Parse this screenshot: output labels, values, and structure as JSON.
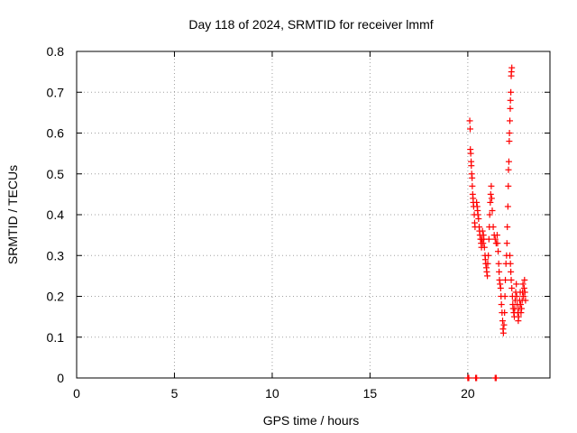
{
  "chart_data": {
    "type": "scatter",
    "title": "Day 118 of 2024, SRMTID for receiver lmmf",
    "xlabel": "GPS time / hours",
    "ylabel": "SRMTID / TECUs",
    "xlim": [
      0,
      24.2
    ],
    "ylim": [
      0,
      0.8
    ],
    "xticks": [
      0,
      5,
      10,
      15,
      20
    ],
    "yticks": [
      0,
      0.1,
      0.2,
      0.3,
      0.4,
      0.5,
      0.6,
      0.7,
      0.8
    ],
    "ytick_labels": [
      "0",
      "0.1",
      "0.2",
      "0.3",
      "0.4",
      "0.5",
      "0.6",
      "0.7",
      "0.8"
    ],
    "grid": true,
    "marker": "+",
    "marker_color": "#ff0000",
    "series": [
      {
        "name": "SRMTID",
        "points": [
          [
            20.0,
            0.0
          ],
          [
            20.05,
            0.0
          ],
          [
            20.4,
            0.0
          ],
          [
            20.45,
            0.0
          ],
          [
            21.4,
            0.0
          ],
          [
            21.45,
            0.0
          ],
          [
            20.1,
            0.63
          ],
          [
            20.12,
            0.61
          ],
          [
            20.13,
            0.56
          ],
          [
            20.15,
            0.55
          ],
          [
            20.17,
            0.53
          ],
          [
            20.18,
            0.52
          ],
          [
            20.2,
            0.5
          ],
          [
            20.22,
            0.49
          ],
          [
            20.23,
            0.47
          ],
          [
            20.25,
            0.45
          ],
          [
            20.27,
            0.44
          ],
          [
            20.28,
            0.43
          ],
          [
            20.3,
            0.42
          ],
          [
            20.33,
            0.4
          ],
          [
            20.35,
            0.38
          ],
          [
            20.37,
            0.37
          ],
          [
            20.45,
            0.43
          ],
          [
            20.48,
            0.42
          ],
          [
            20.5,
            0.41
          ],
          [
            20.52,
            0.4
          ],
          [
            20.55,
            0.39
          ],
          [
            20.58,
            0.37
          ],
          [
            20.6,
            0.36
          ],
          [
            20.62,
            0.35
          ],
          [
            20.65,
            0.34
          ],
          [
            20.68,
            0.33
          ],
          [
            20.7,
            0.32
          ],
          [
            20.72,
            0.34
          ],
          [
            20.75,
            0.36
          ],
          [
            20.78,
            0.33
          ],
          [
            20.8,
            0.35
          ],
          [
            20.82,
            0.34
          ],
          [
            20.85,
            0.32
          ],
          [
            20.88,
            0.3
          ],
          [
            20.9,
            0.29
          ],
          [
            20.92,
            0.28
          ],
          [
            20.95,
            0.27
          ],
          [
            20.97,
            0.26
          ],
          [
            21.0,
            0.25
          ],
          [
            21.02,
            0.28
          ],
          [
            21.05,
            0.3
          ],
          [
            21.08,
            0.34
          ],
          [
            21.1,
            0.37
          ],
          [
            21.12,
            0.4
          ],
          [
            21.15,
            0.43
          ],
          [
            21.17,
            0.45
          ],
          [
            21.2,
            0.47
          ],
          [
            21.22,
            0.44
          ],
          [
            21.25,
            0.41
          ],
          [
            21.3,
            0.37
          ],
          [
            21.35,
            0.35
          ],
          [
            21.4,
            0.34
          ],
          [
            21.45,
            0.33
          ],
          [
            21.5,
            0.35
          ],
          [
            21.52,
            0.33
          ],
          [
            21.55,
            0.31
          ],
          [
            21.58,
            0.28
          ],
          [
            21.6,
            0.26
          ],
          [
            21.62,
            0.24
          ],
          [
            21.65,
            0.23
          ],
          [
            21.68,
            0.22
          ],
          [
            21.7,
            0.2
          ],
          [
            21.72,
            0.18
          ],
          [
            21.75,
            0.16
          ],
          [
            21.78,
            0.14
          ],
          [
            21.8,
            0.12
          ],
          [
            21.82,
            0.11
          ],
          [
            21.85,
            0.13
          ],
          [
            21.88,
            0.16
          ],
          [
            21.9,
            0.2
          ],
          [
            21.92,
            0.24
          ],
          [
            21.95,
            0.28
          ],
          [
            21.98,
            0.3
          ],
          [
            22.0,
            0.33
          ],
          [
            22.02,
            0.37
          ],
          [
            22.05,
            0.42
          ],
          [
            22.07,
            0.47
          ],
          [
            22.08,
            0.51
          ],
          [
            22.1,
            0.53
          ],
          [
            22.12,
            0.58
          ],
          [
            22.13,
            0.6
          ],
          [
            22.15,
            0.63
          ],
          [
            22.17,
            0.66
          ],
          [
            22.18,
            0.68
          ],
          [
            22.2,
            0.7
          ],
          [
            22.22,
            0.74
          ],
          [
            22.23,
            0.75
          ],
          [
            22.25,
            0.76
          ],
          [
            22.15,
            0.3
          ],
          [
            22.18,
            0.28
          ],
          [
            22.2,
            0.26
          ],
          [
            22.22,
            0.24
          ],
          [
            22.25,
            0.22
          ],
          [
            22.28,
            0.2
          ],
          [
            22.3,
            0.18
          ],
          [
            22.32,
            0.17
          ],
          [
            22.35,
            0.16
          ],
          [
            22.38,
            0.15
          ],
          [
            22.4,
            0.17
          ],
          [
            22.42,
            0.19
          ],
          [
            22.45,
            0.21
          ],
          [
            22.48,
            0.23
          ],
          [
            22.5,
            0.2
          ],
          [
            22.52,
            0.18
          ],
          [
            22.55,
            0.16
          ],
          [
            22.58,
            0.14
          ],
          [
            22.6,
            0.15
          ],
          [
            22.62,
            0.17
          ],
          [
            22.65,
            0.19
          ],
          [
            22.68,
            0.21
          ],
          [
            22.7,
            0.18
          ],
          [
            22.72,
            0.16
          ],
          [
            22.75,
            0.17
          ],
          [
            22.78,
            0.19
          ],
          [
            22.8,
            0.21
          ],
          [
            22.82,
            0.23
          ],
          [
            22.85,
            0.2
          ],
          [
            22.88,
            0.22
          ],
          [
            22.9,
            0.24
          ],
          [
            22.92,
            0.21
          ],
          [
            22.95,
            0.19
          ]
        ]
      }
    ]
  }
}
